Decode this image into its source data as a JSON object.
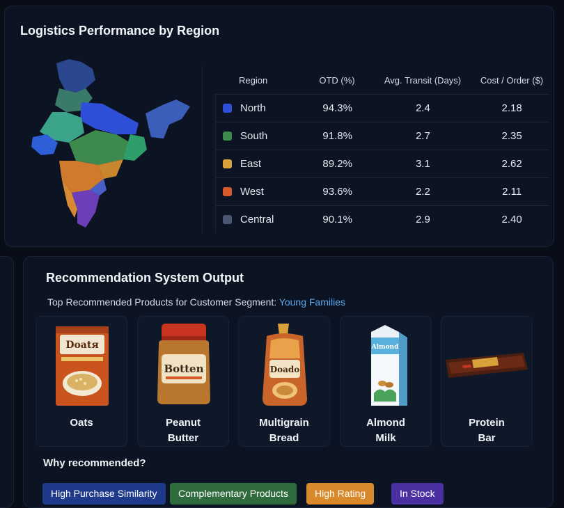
{
  "logistics": {
    "title": "Logistics Performance by Region",
    "columns": [
      "Region",
      "OTD (%)",
      "Avg. Transit (Days)",
      "Cost / Order ($)"
    ],
    "rows": [
      {
        "region": "North",
        "otd": "94.3%",
        "transit": "2.4",
        "cost": "2.18",
        "color": "#2f4fd8"
      },
      {
        "region": "South",
        "otd": "91.8%",
        "transit": "2.7",
        "cost": "2.35",
        "color": "#3e8a4e"
      },
      {
        "region": "East",
        "otd": "89.2%",
        "transit": "3.1",
        "cost": "2.62",
        "color": "#d9a13a"
      },
      {
        "region": "West",
        "otd": "93.6%",
        "transit": "2.2",
        "cost": "2.11",
        "color": "#d65a2a"
      },
      {
        "region": "Central",
        "otd": "90.1%",
        "transit": "2.9",
        "cost": "2.40",
        "color": "#4b5770"
      }
    ]
  },
  "recommendation": {
    "title": "Recommendation System Output",
    "subtitle_prefix": "Top Recommended Products for Customer Segment: ",
    "segment": "Young Families",
    "products": [
      {
        "name": "Oats",
        "package_text": "Doatя"
      },
      {
        "name": "Peanut\nButter",
        "package_text": "Botten"
      },
      {
        "name": "Multigrain\nBread",
        "package_text": "Doado"
      },
      {
        "name": "Almond\nMilk",
        "package_text": "Almond"
      },
      {
        "name": "Protein\nBar",
        "package_text": ""
      }
    ],
    "why_label": "Why recommended?",
    "tags": [
      {
        "label": "High Purchase Similarity",
        "color": "#1f3a8a"
      },
      {
        "label": "Complementary Products",
        "color": "#2f6b3d"
      },
      {
        "label": "High Rating",
        "color": "#d8892c"
      },
      {
        "label": "In Stock",
        "color": "#4a2fa0"
      }
    ]
  }
}
